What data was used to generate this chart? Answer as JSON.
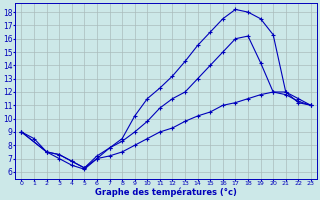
{
  "xlabel": "Graphe des températures (°c)",
  "bg_color": "#cce8e8",
  "grid_color": "#aabcbc",
  "line_color": "#0000bb",
  "x_ticks": [
    0,
    1,
    2,
    3,
    4,
    5,
    6,
    7,
    8,
    9,
    10,
    11,
    12,
    13,
    14,
    15,
    16,
    17,
    18,
    19,
    20,
    21,
    22,
    23
  ],
  "y_ticks": [
    6,
    7,
    8,
    9,
    10,
    11,
    12,
    13,
    14,
    15,
    16,
    17,
    18
  ],
  "ylim": [
    5.5,
    18.7
  ],
  "xlim": [
    -0.5,
    23.5
  ],
  "series": [
    {
      "x": [
        0,
        1,
        2,
        3,
        4,
        5,
        6,
        7,
        8,
        9,
        10,
        11,
        12,
        13,
        14,
        15,
        16,
        17,
        18,
        19,
        20,
        21,
        22,
        23
      ],
      "y": [
        9.0,
        8.5,
        7.5,
        7.0,
        6.5,
        6.2,
        7.0,
        7.8,
        8.5,
        10.2,
        11.5,
        12.3,
        13.2,
        14.3,
        15.5,
        16.5,
        17.5,
        18.2,
        18.0,
        17.5,
        16.3,
        12.0,
        11.2,
        11.0
      ]
    },
    {
      "x": [
        0,
        2,
        3,
        4,
        5,
        6,
        7,
        8,
        9,
        10,
        11,
        12,
        13,
        14,
        15,
        16,
        17,
        18,
        19,
        20,
        21,
        22,
        23
      ],
      "y": [
        9.0,
        7.5,
        7.3,
        6.8,
        6.3,
        7.2,
        7.8,
        8.3,
        9.0,
        9.8,
        10.8,
        11.5,
        12.0,
        13.0,
        14.0,
        15.0,
        16.0,
        16.2,
        14.2,
        12.0,
        11.8,
        11.3,
        11.0
      ]
    },
    {
      "x": [
        0,
        2,
        3,
        4,
        5,
        6,
        7,
        8,
        9,
        10,
        11,
        12,
        13,
        14,
        15,
        16,
        17,
        18,
        19,
        20,
        21,
        22,
        23
      ],
      "y": [
        9.0,
        7.5,
        7.3,
        6.8,
        6.3,
        7.0,
        7.2,
        7.5,
        8.0,
        8.5,
        9.0,
        9.3,
        9.8,
        10.2,
        10.5,
        11.0,
        11.2,
        11.5,
        11.8,
        12.0,
        12.0,
        11.5,
        11.0
      ]
    }
  ]
}
